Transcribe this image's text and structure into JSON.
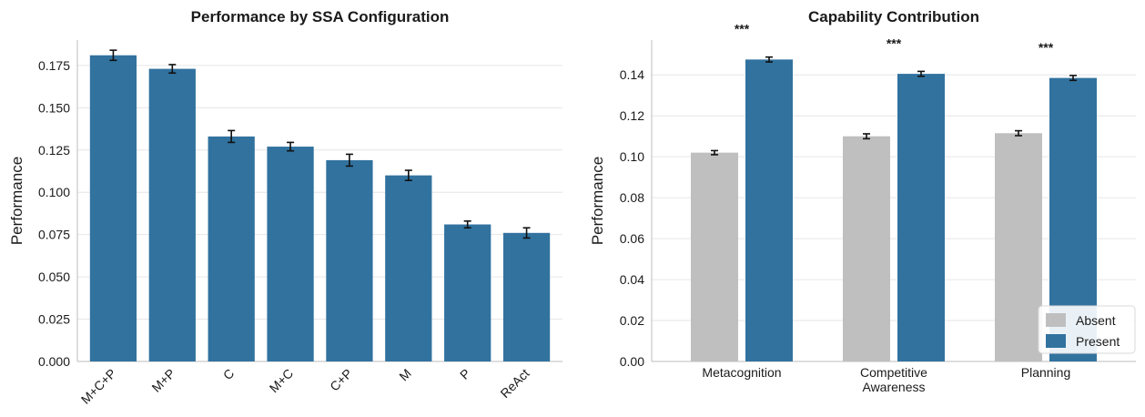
{
  "chart_data": [
    {
      "type": "bar",
      "title": "Performance by SSA Configuration",
      "xlabel": "",
      "ylabel": "Performance",
      "ylim": [
        0,
        0.19
      ],
      "yticks": [
        "0.000",
        "0.025",
        "0.050",
        "0.075",
        "0.100",
        "0.125",
        "0.150",
        "0.175"
      ],
      "categories": [
        "M+C+P",
        "M+P",
        "C",
        "M+C",
        "C+P",
        "M",
        "P",
        "ReAct"
      ],
      "values": [
        0.181,
        0.173,
        0.133,
        0.127,
        0.119,
        0.11,
        0.081,
        0.076
      ],
      "errors": [
        0.003,
        0.0025,
        0.0035,
        0.0025,
        0.0035,
        0.003,
        0.002,
        0.003
      ],
      "color": "#31729f",
      "grid": "y"
    },
    {
      "type": "bar",
      "title": "Capability Contribution",
      "xlabel": "",
      "ylabel": "Performance",
      "ylim": [
        0,
        0.157
      ],
      "yticks": [
        "0.00",
        "0.02",
        "0.04",
        "0.06",
        "0.08",
        "0.10",
        "0.12",
        "0.14"
      ],
      "categories": [
        "Metacognition",
        "Competitive\nAwareness",
        "Planning"
      ],
      "series": [
        {
          "name": "Absent",
          "color": "#bfbfbf",
          "values": [
            0.102,
            0.11,
            0.1115
          ],
          "errors": [
            0.001,
            0.0012,
            0.0012
          ]
        },
        {
          "name": "Present",
          "color": "#31729f",
          "values": [
            0.1475,
            0.1405,
            0.1385
          ],
          "errors": [
            0.0012,
            0.0012,
            0.0012
          ]
        }
      ],
      "annotations": [
        "***",
        "***",
        "***"
      ],
      "legend": "lower-right",
      "grid": "y"
    }
  ]
}
